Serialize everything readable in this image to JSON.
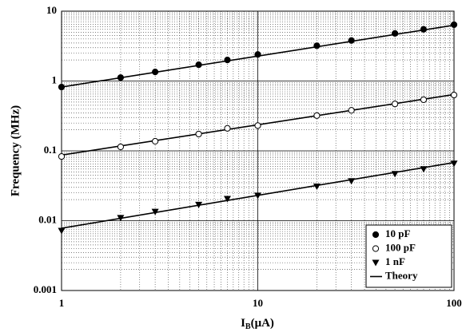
{
  "chart_data": {
    "type": "loglog-scatter",
    "ylabel": "Frequency (MHz)",
    "xlabel": "I",
    "xlabel_sub": "B",
    "xlabel_unit": "(μA)",
    "xlim": [
      1,
      100
    ],
    "ylim": [
      0.001,
      10
    ],
    "xticks": [
      1,
      10,
      100
    ],
    "yticks": [
      0.001,
      0.01,
      0.1,
      1,
      10
    ],
    "log_x": true,
    "log_y": true,
    "grid": true,
    "minor_grid": true,
    "legend": "lower right",
    "x": [
      1,
      2,
      3,
      5,
      7,
      10,
      20,
      30,
      50,
      70,
      100
    ],
    "series": [
      {
        "name": "10 pF",
        "color": "#000000",
        "marker": "circle-filled",
        "values": [
          0.82,
          1.12,
          1.35,
          1.71,
          2.0,
          2.4,
          3.2,
          3.8,
          4.8,
          5.5,
          6.4
        ]
      },
      {
        "name": "100 pF",
        "color": "#000000",
        "marker": "circle-open",
        "values": [
          0.083,
          0.114,
          0.137,
          0.174,
          0.21,
          0.23,
          0.32,
          0.38,
          0.47,
          0.54,
          0.63
        ]
      },
      {
        "name": "1 nF",
        "color": "#000000",
        "marker": "triangle-down",
        "values": [
          0.0072,
          0.011,
          0.0135,
          0.017,
          0.0206,
          0.023,
          0.031,
          0.037,
          0.047,
          0.055,
          0.066
        ]
      }
    ],
    "theory": {
      "name": "Theory",
      "color": "#000000",
      "lines": [
        {
          "x": [
            1,
            100
          ],
          "values": [
            0.82,
            6.3
          ]
        },
        {
          "x": [
            1,
            100
          ],
          "values": [
            0.087,
            0.64
          ]
        },
        {
          "x": [
            1,
            100
          ],
          "values": [
            0.0078,
            0.068
          ]
        }
      ]
    }
  }
}
